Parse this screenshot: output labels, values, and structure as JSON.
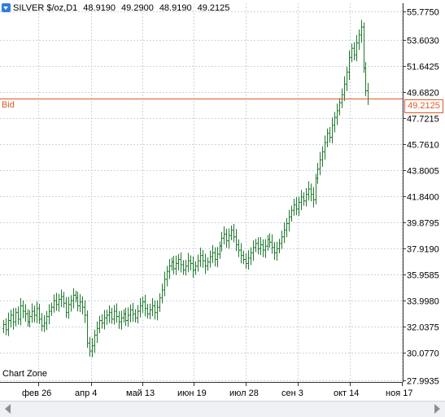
{
  "header": {
    "symbol": "SILVER $/oz,D1",
    "open": "48.9190",
    "high": "49.2900",
    "low": "48.9190",
    "close": "49.2125"
  },
  "bid": {
    "label": "Bid",
    "value": "49.2125"
  },
  "watermark": "Chart Zone",
  "colors": {
    "bid_line": "#e05a2b",
    "grid": "#c9d6dd",
    "candle": "#1f7a2e"
  },
  "chart_data": {
    "type": "candlestick",
    "y_ticks": [
      "55.7750",
      "53.6030",
      "51.6425",
      "49.6820",
      "47.7215",
      "45.7610",
      "43.8005",
      "41.8400",
      "39.8795",
      "37.9190",
      "35.9585",
      "33.9980",
      "32.0375",
      "30.0770",
      "27.9935"
    ],
    "x_ticks": [
      "фев 26",
      "апр 4",
      "май 13",
      "июн 19",
      "июл 28",
      "сен 3",
      "окт 14",
      "ноя 17"
    ],
    "ylim": [
      27.9935,
      55.775
    ],
    "grid": true,
    "bid_price": 49.2125,
    "closes": [
      32.2,
      31.8,
      32.5,
      32.9,
      32.4,
      33.1,
      32.6,
      33.6,
      33.2,
      33.0,
      32.4,
      32.8,
      33.2,
      32.9,
      33.4,
      32.6,
      32.1,
      32.3,
      32.8,
      33.2,
      33.5,
      34.0,
      33.7,
      34.1,
      34.3,
      33.8,
      33.1,
      33.7,
      34.0,
      34.4,
      34.2,
      33.6,
      33.9,
      33.5,
      32.9,
      30.8,
      30.2,
      30.6,
      31.4,
      31.9,
      32.5,
      32.3,
      32.7,
      32.9,
      33.1,
      32.6,
      33.2,
      32.8,
      32.4,
      32.7,
      33.0,
      32.5,
      32.9,
      33.3,
      33.0,
      32.7,
      33.2,
      33.6,
      33.9,
      33.4,
      33.0,
      33.3,
      33.6,
      33.1,
      33.5,
      34.2,
      34.8,
      35.6,
      36.2,
      36.6,
      36.9,
      36.4,
      36.8,
      37.1,
      36.7,
      36.3,
      36.6,
      37.0,
      36.8,
      36.3,
      36.6,
      37.0,
      37.4,
      37.0,
      36.6,
      36.9,
      37.3,
      37.6,
      37.1,
      37.5,
      38.1,
      38.7,
      39.0,
      38.5,
      38.9,
      39.3,
      38.8,
      38.2,
      37.8,
      37.4,
      37.1,
      36.8,
      37.2,
      37.6,
      38.0,
      38.3,
      37.9,
      38.2,
      37.8,
      38.1,
      38.6,
      38.4,
      38.0,
      37.6,
      37.9,
      38.3,
      38.8,
      39.3,
      39.8,
      40.3,
      40.8,
      41.2,
      40.9,
      41.4,
      41.8,
      41.5,
      42.0,
      42.4,
      42.0,
      41.6,
      43.2,
      43.9,
      44.6,
      45.2,
      45.9,
      46.6,
      46.3,
      47.2,
      47.8,
      48.3,
      48.9,
      49.5,
      50.3,
      51.2,
      52.3,
      53.0,
      52.5,
      53.4,
      54.0,
      54.6,
      51.5,
      49.8,
      49.2
    ]
  }
}
